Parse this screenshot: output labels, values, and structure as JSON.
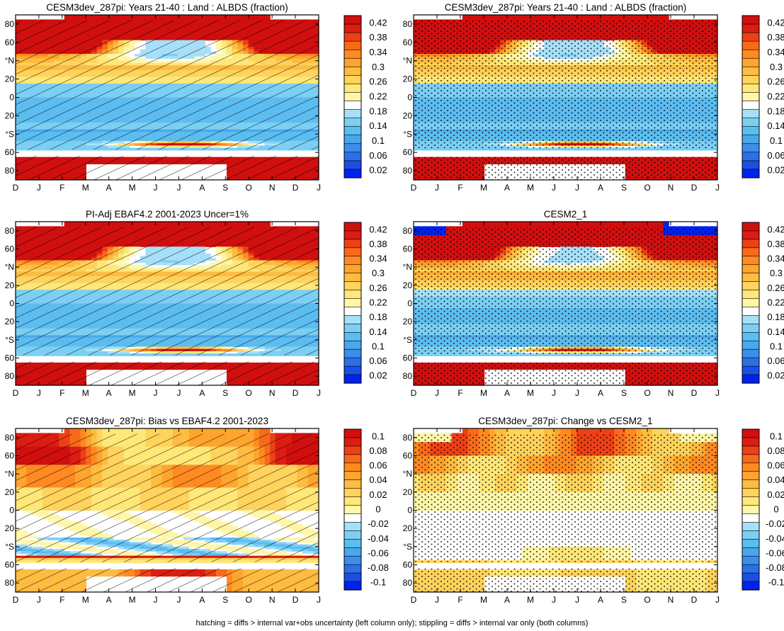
{
  "figure": {
    "caption": "hatching = diffs > internal var+obs uncertainty (left column only); stippling = diffs > internal var only (both columns)"
  },
  "colors": {
    "blue_ramp": [
      "#0022ee",
      "#1a4fe6",
      "#2d6fe6",
      "#3b8fe8",
      "#48a8ec",
      "#5cbdf0",
      "#7ccff4",
      "#a6e0f8"
    ],
    "warm_ramp": [
      "#fff6a8",
      "#ffe778",
      "#ffd35c",
      "#ffbc40",
      "#ffa52e",
      "#ff8a22",
      "#f86a1a",
      "#ec4016",
      "#dd1c12",
      "#d10f0f"
    ],
    "neutral": "#ffffff"
  },
  "chart_data": [
    {
      "type": "heatmap",
      "title": "CESM3dev_287pi: Years 21-40 : Land : ALBDS (fraction)",
      "x_ticks": [
        "D",
        "J",
        "F",
        "M",
        "A",
        "M",
        "J",
        "J",
        "A",
        "S",
        "O",
        "N",
        "D",
        "J"
      ],
      "y_ticks": [
        "80",
        "60",
        "°N",
        "20",
        "0",
        "20",
        "°S",
        "60",
        "80"
      ],
      "colorbar_labels": [
        "0.42",
        "0.38",
        "0.34",
        "0.3",
        "0.26",
        "0.22",
        "0.18",
        "0.14",
        "0.1",
        "0.06",
        "0.02"
      ],
      "value_range": [
        0.0,
        0.44
      ],
      "neutral_band": [
        0.2,
        0.22
      ],
      "field": "albedo",
      "overlay": "hatching"
    },
    {
      "type": "heatmap",
      "title": "CESM3dev_287pi: Years 21-40 : Land : ALBDS (fraction)",
      "x_ticks": [
        "D",
        "J",
        "F",
        "M",
        "A",
        "M",
        "J",
        "J",
        "A",
        "S",
        "O",
        "N",
        "D",
        "J"
      ],
      "y_ticks": [
        "80",
        "60",
        "°N",
        "20",
        "0",
        "20",
        "°S",
        "60",
        "80"
      ],
      "colorbar_labels": [
        "0.42",
        "0.38",
        "0.34",
        "0.3",
        "0.26",
        "0.22",
        "0.18",
        "0.14",
        "0.1",
        "0.06",
        "0.02"
      ],
      "value_range": [
        0.0,
        0.44
      ],
      "neutral_band": [
        0.2,
        0.22
      ],
      "field": "albedo",
      "overlay": "stipple"
    },
    {
      "type": "heatmap",
      "title": "PI-Adj EBAF4.2 2001-2023 Uncer=1%",
      "x_ticks": [
        "D",
        "J",
        "F",
        "M",
        "A",
        "M",
        "J",
        "J",
        "A",
        "S",
        "O",
        "N",
        "D",
        "J"
      ],
      "y_ticks": [
        "80",
        "60",
        "°N",
        "20",
        "0",
        "20",
        "°S",
        "60",
        "80"
      ],
      "colorbar_labels": [
        "0.42",
        "0.38",
        "0.34",
        "0.3",
        "0.26",
        "0.22",
        "0.18",
        "0.14",
        "0.1",
        "0.06",
        "0.02"
      ],
      "value_range": [
        0.0,
        0.44
      ],
      "neutral_band": [
        0.2,
        0.22
      ],
      "field": "albedo",
      "overlay": "hatching"
    },
    {
      "type": "heatmap",
      "title": "CESM2_1",
      "x_ticks": [
        "D",
        "J",
        "F",
        "M",
        "A",
        "M",
        "J",
        "J",
        "A",
        "S",
        "O",
        "N",
        "D",
        "J"
      ],
      "y_ticks": [
        "80",
        "60",
        "°N",
        "20",
        "0",
        "20",
        "°S",
        "60",
        "80"
      ],
      "colorbar_labels": [
        "0.42",
        "0.38",
        "0.34",
        "0.3",
        "0.26",
        "0.22",
        "0.18",
        "0.14",
        "0.1",
        "0.06",
        "0.02"
      ],
      "value_range": [
        0.0,
        0.44
      ],
      "neutral_band": [
        0.2,
        0.22
      ],
      "field": "albedo_cesm2",
      "overlay": "stipple"
    },
    {
      "type": "heatmap",
      "title": "CESM3dev_287pi: Bias vs EBAF4.2 2001-2023",
      "x_ticks": [
        "D",
        "J",
        "F",
        "M",
        "A",
        "M",
        "J",
        "J",
        "A",
        "S",
        "O",
        "N",
        "D",
        "J"
      ],
      "y_ticks": [
        "80",
        "60",
        "°N",
        "20",
        "0",
        "20",
        "°S",
        "60",
        "80"
      ],
      "colorbar_labels": [
        "0.1",
        "0.08",
        "0.06",
        "0.04",
        "0.02",
        "0",
        "-0.02",
        "-0.04",
        "-0.06",
        "-0.08",
        "-0.1"
      ],
      "value_range": [
        -0.11,
        0.11
      ],
      "neutral_band": [
        -0.01,
        0.01
      ],
      "field": "bias",
      "overlay": "hatching"
    },
    {
      "type": "heatmap",
      "title": "CESM3dev_287pi: Change vs CESM2_1",
      "x_ticks": [
        "D",
        "J",
        "F",
        "M",
        "A",
        "M",
        "J",
        "J",
        "A",
        "S",
        "O",
        "N",
        "D",
        "J"
      ],
      "y_ticks": [
        "80",
        "60",
        "°N",
        "20",
        "0",
        "20",
        "°S",
        "60",
        "80"
      ],
      "colorbar_labels": [
        "0.1",
        "0.08",
        "0.06",
        "0.04",
        "0.02",
        "0",
        "-0.02",
        "-0.04",
        "-0.06",
        "-0.08",
        "-0.1"
      ],
      "value_range": [
        -0.11,
        0.11
      ],
      "neutral_band": [
        -0.01,
        0.01
      ],
      "field": "change",
      "overlay": "stipple"
    }
  ]
}
